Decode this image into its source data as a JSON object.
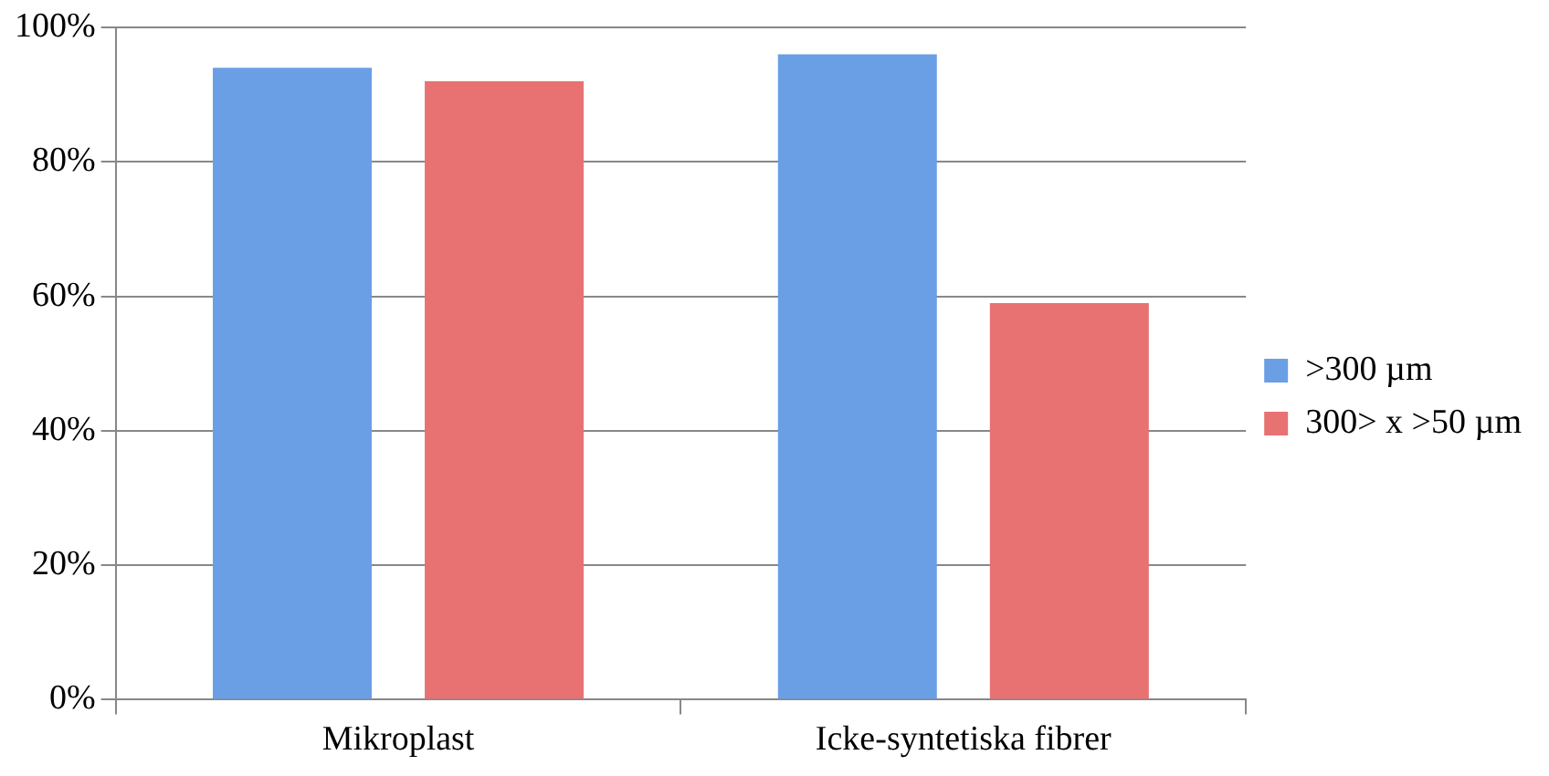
{
  "chart_data": {
    "type": "bar",
    "categories": [
      "Mikroplast",
      "Icke-syntetiska fibrer"
    ],
    "series": [
      {
        "name": ">300 µm",
        "color": "#6a9fe6",
        "values": [
          94,
          96
        ]
      },
      {
        "name": "300> x >50 µm",
        "color": "#e87272",
        "values": [
          92,
          59
        ]
      }
    ],
    "ylim": [
      0,
      100
    ],
    "yticks": [
      {
        "value": 0,
        "label": "0%"
      },
      {
        "value": 20,
        "label": "20%"
      },
      {
        "value": 40,
        "label": "40%"
      },
      {
        "value": 60,
        "label": "60%"
      },
      {
        "value": 80,
        "label": "80%"
      },
      {
        "value": 100,
        "label": "100%"
      }
    ],
    "grid": "y",
    "legend": "right"
  }
}
